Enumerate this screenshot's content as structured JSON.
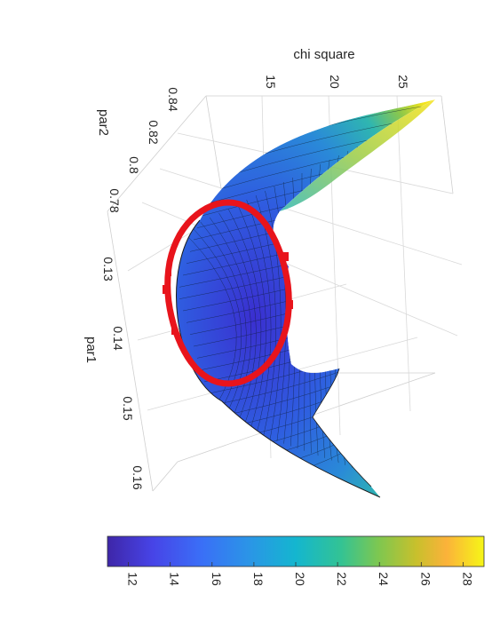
{
  "chart_data": {
    "type": "surface",
    "title": "",
    "zlabel": "chi square",
    "xlabel": "par1",
    "ylabel": "par2",
    "z_ticks": [
      "15",
      "20",
      "25"
    ],
    "x_ticks": [
      "0.13",
      "0.14",
      "0.15",
      "0.16"
    ],
    "y_ticks": [
      "0.78",
      "0.8",
      "0.82",
      "0.84"
    ],
    "zlim": [
      11,
      28
    ],
    "colorbar": {
      "ticks": [
        "12",
        "14",
        "16",
        "18",
        "20",
        "22",
        "24",
        "26",
        "28"
      ],
      "range": [
        11,
        29
      ],
      "colormap": "parula"
    },
    "contour_ring": {
      "color": "#e8141c",
      "level": 13.5
    },
    "rotation_deg": 90
  }
}
